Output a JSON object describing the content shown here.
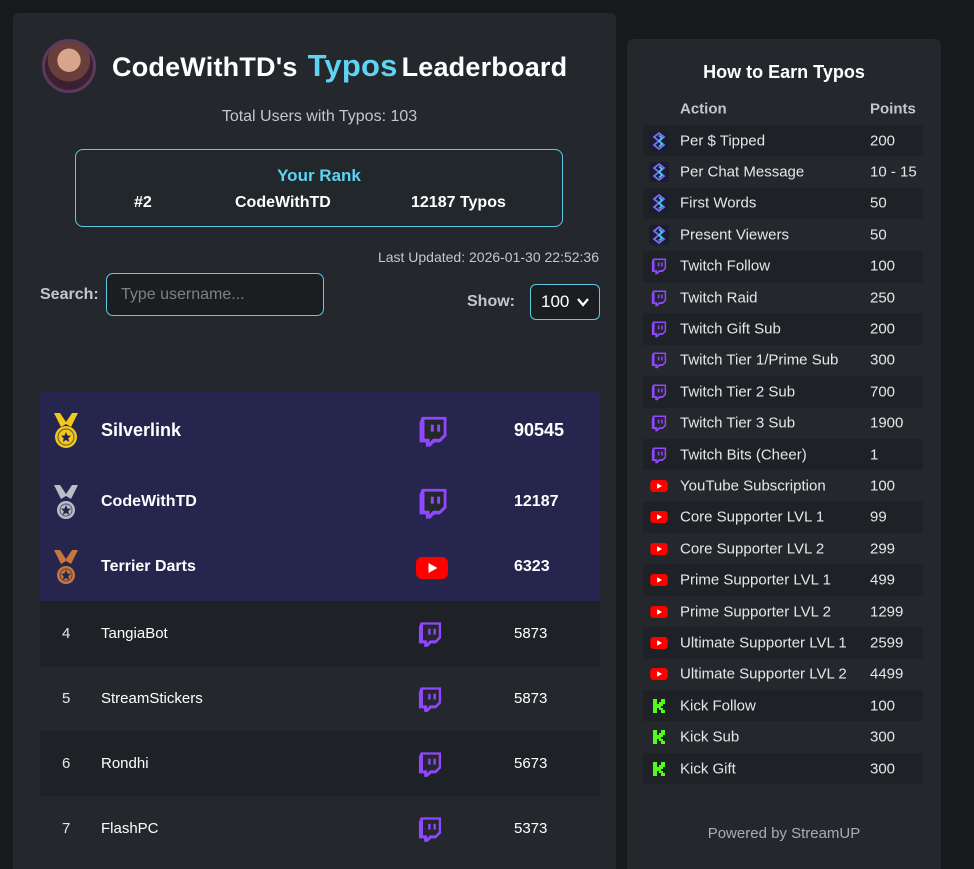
{
  "header": {
    "title_prefix": "CodeWithTD's",
    "title_accent": "Typos",
    "title_suffix": "Leaderboard",
    "total_users": "Total Users with Typos: 103"
  },
  "your_rank": {
    "title": "Your Rank",
    "rank": "#2",
    "username": "CodeWithTD",
    "typos": "12187 Typos"
  },
  "last_updated": "Last Updated: 2026-01-30 22:52:36",
  "search": {
    "label": "Search:",
    "placeholder": "Type username..."
  },
  "show": {
    "label": "Show:",
    "value": "100"
  },
  "leaderboard": [
    {
      "rank": "1",
      "name": "Silverlink",
      "platform": "twitch",
      "score": "90545",
      "medal": "gold"
    },
    {
      "rank": "2",
      "name": "CodeWithTD",
      "platform": "twitch",
      "score": "12187",
      "medal": "silver"
    },
    {
      "rank": "3",
      "name": "Terrier Darts",
      "platform": "youtube",
      "score": "6323",
      "medal": "bronze"
    },
    {
      "rank": "4",
      "name": "TangiaBot",
      "platform": "twitch",
      "score": "5873"
    },
    {
      "rank": "5",
      "name": "StreamStickers",
      "platform": "twitch",
      "score": "5873"
    },
    {
      "rank": "6",
      "name": "Rondhi",
      "platform": "twitch",
      "score": "5673"
    },
    {
      "rank": "7",
      "name": "FlashPC",
      "platform": "twitch",
      "score": "5373"
    }
  ],
  "earn": {
    "title": "How to Earn Typos",
    "col_action": "Action",
    "col_points": "Points",
    "rows": [
      {
        "icon": "streamup-icon",
        "action": "Per $ Tipped",
        "points": "200"
      },
      {
        "icon": "streamup-icon",
        "action": "Per Chat Message",
        "points": "10 - 15"
      },
      {
        "icon": "streamup-icon",
        "action": "First Words",
        "points": "50"
      },
      {
        "icon": "streamup-icon",
        "action": "Present Viewers",
        "points": "50"
      },
      {
        "icon": "twitch-icon",
        "action": "Twitch Follow",
        "points": "100"
      },
      {
        "icon": "twitch-icon",
        "action": "Twitch Raid",
        "points": "250"
      },
      {
        "icon": "twitch-icon",
        "action": "Twitch Gift Sub",
        "points": "200"
      },
      {
        "icon": "twitch-icon",
        "action": "Twitch Tier 1/Prime Sub",
        "points": "300"
      },
      {
        "icon": "twitch-icon",
        "action": "Twitch Tier 2 Sub",
        "points": "700"
      },
      {
        "icon": "twitch-icon",
        "action": "Twitch Tier 3 Sub",
        "points": "1900"
      },
      {
        "icon": "twitch-icon",
        "action": "Twitch Bits (Cheer)",
        "points": "1"
      },
      {
        "icon": "youtube-icon",
        "action": "YouTube Subscription",
        "points": "100"
      },
      {
        "icon": "youtube-icon",
        "action": "Core Supporter LVL 1",
        "points": "99"
      },
      {
        "icon": "youtube-icon",
        "action": "Core Supporter LVL 2",
        "points": "299"
      },
      {
        "icon": "youtube-icon",
        "action": "Prime Supporter LVL 1",
        "points": "499"
      },
      {
        "icon": "youtube-icon",
        "action": "Prime Supporter LVL 2",
        "points": "1299"
      },
      {
        "icon": "youtube-icon",
        "action": "Ultimate Supporter LVL 1",
        "points": "2599"
      },
      {
        "icon": "youtube-icon",
        "action": "Ultimate Supporter LVL 2",
        "points": "4499"
      },
      {
        "icon": "kick-icon",
        "action": "Kick Follow",
        "points": "100"
      },
      {
        "icon": "kick-icon",
        "action": "Kick Sub",
        "points": "300"
      },
      {
        "icon": "kick-icon",
        "action": "Kick Gift",
        "points": "300"
      }
    ],
    "powered_by": "Powered by StreamUP"
  },
  "colors": {
    "accent": "#5fd3f3",
    "twitch": "#9146ff",
    "youtube": "#ff0000",
    "kick": "#53fc18",
    "gold": "#f2c81c",
    "silver": "#b9bec6",
    "bronze": "#c8773b"
  }
}
